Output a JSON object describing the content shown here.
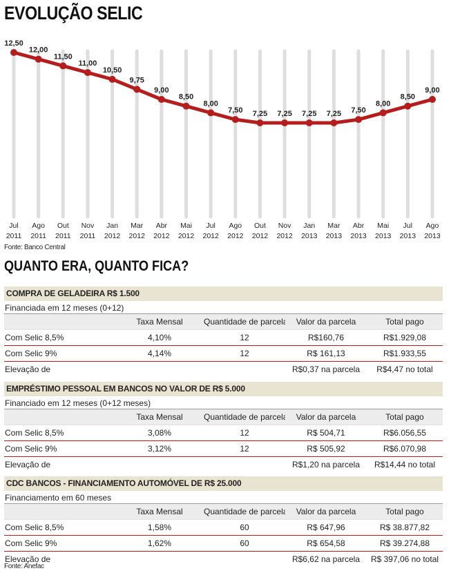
{
  "chart_data": {
    "type": "line",
    "title": "EVOLUÇÃO SELIC",
    "x": [
      "Jul 2011",
      "Ago 2011",
      "Out 2011",
      "Nov 2011",
      "Jan 2012",
      "Mar 2012",
      "Abr 2012",
      "Mai 2012",
      "Jul 2012",
      "Ago 2012",
      "Out 2012",
      "Nov 2012",
      "Jan 2013",
      "Mar 2013",
      "Abr 2013",
      "Mai 2013",
      "Jul 2013",
      "Ago 2013"
    ],
    "x_month": [
      "Jul",
      "Ago",
      "Out",
      "Nov",
      "Jan",
      "Mar",
      "Abr",
      "Mai",
      "Jul",
      "Ago",
      "Out",
      "Nov",
      "Jan",
      "Mar",
      "Abr",
      "Mai",
      "Jul",
      "Ago"
    ],
    "x_year": [
      "2011",
      "2011",
      "2011",
      "2011",
      "2012",
      "2012",
      "2012",
      "2012",
      "2012",
      "2012",
      "2012",
      "2012",
      "2013",
      "2013",
      "2013",
      "2013",
      "2013",
      "2013"
    ],
    "values": [
      12.5,
      12.0,
      11.5,
      11.0,
      10.5,
      9.75,
      9.0,
      8.5,
      8.0,
      7.5,
      7.25,
      7.25,
      7.25,
      7.25,
      7.5,
      8.0,
      8.5,
      9.0
    ],
    "data_labels": [
      "12,50",
      "12,00",
      "11,50",
      "11,00",
      "10,50",
      "9,75",
      "9,00",
      "8,50",
      "8,00",
      "7,50",
      "7,25",
      "7,25",
      "7,25",
      "7,25",
      "7,50",
      "8,00",
      "8,50",
      "9,00"
    ],
    "line_color": "#b51d1d",
    "grid": true
  },
  "chart_source": "Fonte: Banco Central",
  "section_title": "QUANTO ERA, QUANTO FICA?",
  "tables": [
    {
      "title": "COMPRA DE GELADEIRA R$ 1.500",
      "subtitle": "Financiada em 12 meses (0+12)",
      "header": [
        "",
        "Taxa Mensal",
        "Quantidade de parcelas",
        "Valor da parcela",
        "Total pago"
      ],
      "rows": [
        [
          "Com Selic 8,5%",
          "4,10%",
          "12",
          "R$160,76",
          "R$1.929,08"
        ],
        [
          "Com Selic 9%",
          "4,14%",
          "12",
          "R$ 161,13",
          "R$1.933,55"
        ],
        [
          "Elevação de",
          "",
          "",
          "R$0,37 na parcela",
          "R$4,47 no total"
        ]
      ]
    },
    {
      "title": "EMPRÉSTIMO PESSOAL EM BANCOS NO VALOR DE R$ 5.000",
      "subtitle": "Financiado em 12 meses (0+12 meses)",
      "header": [
        "",
        "Taxa Mensal",
        "Quantidade de parcelas",
        "Valor da parcela",
        "Total pago"
      ],
      "rows": [
        [
          "Com Selic 8,5%",
          "3,08%",
          "12",
          "R$ 504,71",
          "R$6.056,55"
        ],
        [
          "Com Selic 9%",
          "3,12%",
          "12",
          "R$ 505,92",
          "R$6.070,98"
        ],
        [
          "Elevação de",
          "",
          "",
          "R$1,20 na parcela",
          "R$14,44 no total"
        ]
      ]
    },
    {
      "title": "CDC BANCOS - FINANCIAMENTO AUTOMÓVEL DE R$ 25.000",
      "subtitle": "Financiamento em 60 meses",
      "header": [
        "",
        "Taxa Mensal",
        "Quantidade de parcelas",
        "Valor da parcela",
        "Total pago"
      ],
      "rows": [
        [
          "Com Selic 8,5%",
          "1,58%",
          "60",
          "R$ 647,96",
          "R$ 38.877,82"
        ],
        [
          "Com Selic 9%",
          "1,62%",
          "60",
          "R$ 654,58",
          "R$ 39.274,88"
        ],
        [
          "Elevação de",
          "",
          "",
          "R$6,62 na parcela",
          "R$ 397,06 no total"
        ]
      ]
    }
  ],
  "table_source": "Fonte: Anefac"
}
